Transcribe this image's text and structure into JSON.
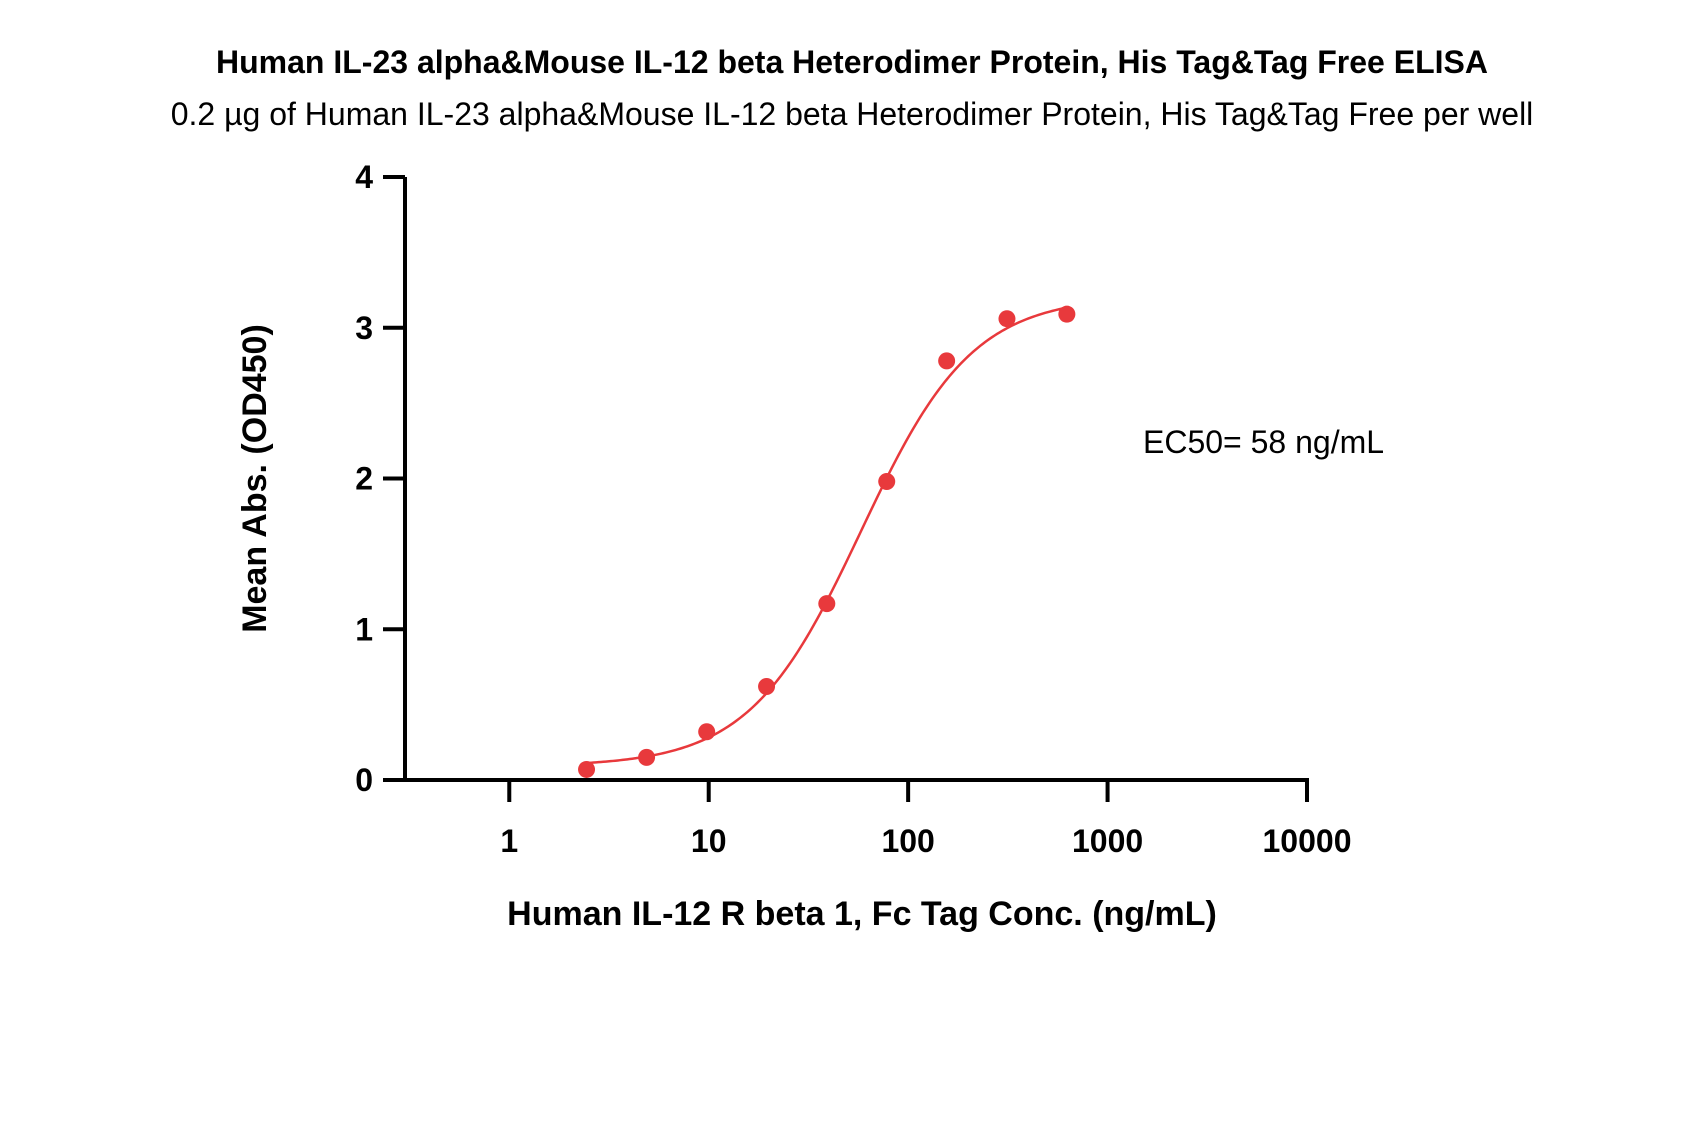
{
  "chart_data": {
    "type": "scatter",
    "title": "Human IL-23 alpha&Mouse IL-12 beta Heterodimer Protein, His Tag&Tag Free ELISA",
    "subtitle": "0.2 µg of Human IL-23 alpha&Mouse IL-12 beta Heterodimer Protein, His Tag&Tag Free per well",
    "xlabel": "Human IL-12 R beta 1, Fc Tag Conc. (ng/mL)",
    "ylabel": "Mean Abs. (OD450)",
    "x_scale": "log",
    "xlim": [
      0.3,
      10000
    ],
    "ylim": [
      0,
      4
    ],
    "x_ticks": [
      1,
      10,
      100,
      1000,
      10000
    ],
    "x_tick_labels": [
      "1",
      "10",
      "100",
      "1000",
      "10000"
    ],
    "y_ticks": [
      0,
      1,
      2,
      3,
      4
    ],
    "y_tick_labels": [
      "0",
      "1",
      "2",
      "3",
      "4"
    ],
    "grid": false,
    "series": [
      {
        "x": [
          2.44,
          4.88,
          9.77,
          19.5,
          39.1,
          78.1,
          156,
          313,
          625
        ],
        "y": [
          0.07,
          0.15,
          0.32,
          0.62,
          1.17,
          1.98,
          2.78,
          3.06,
          3.09
        ],
        "color": "#e8393c",
        "fit": "4PL"
      }
    ],
    "annotation": "EC50= 58 ng/mL",
    "ec50": 58
  }
}
